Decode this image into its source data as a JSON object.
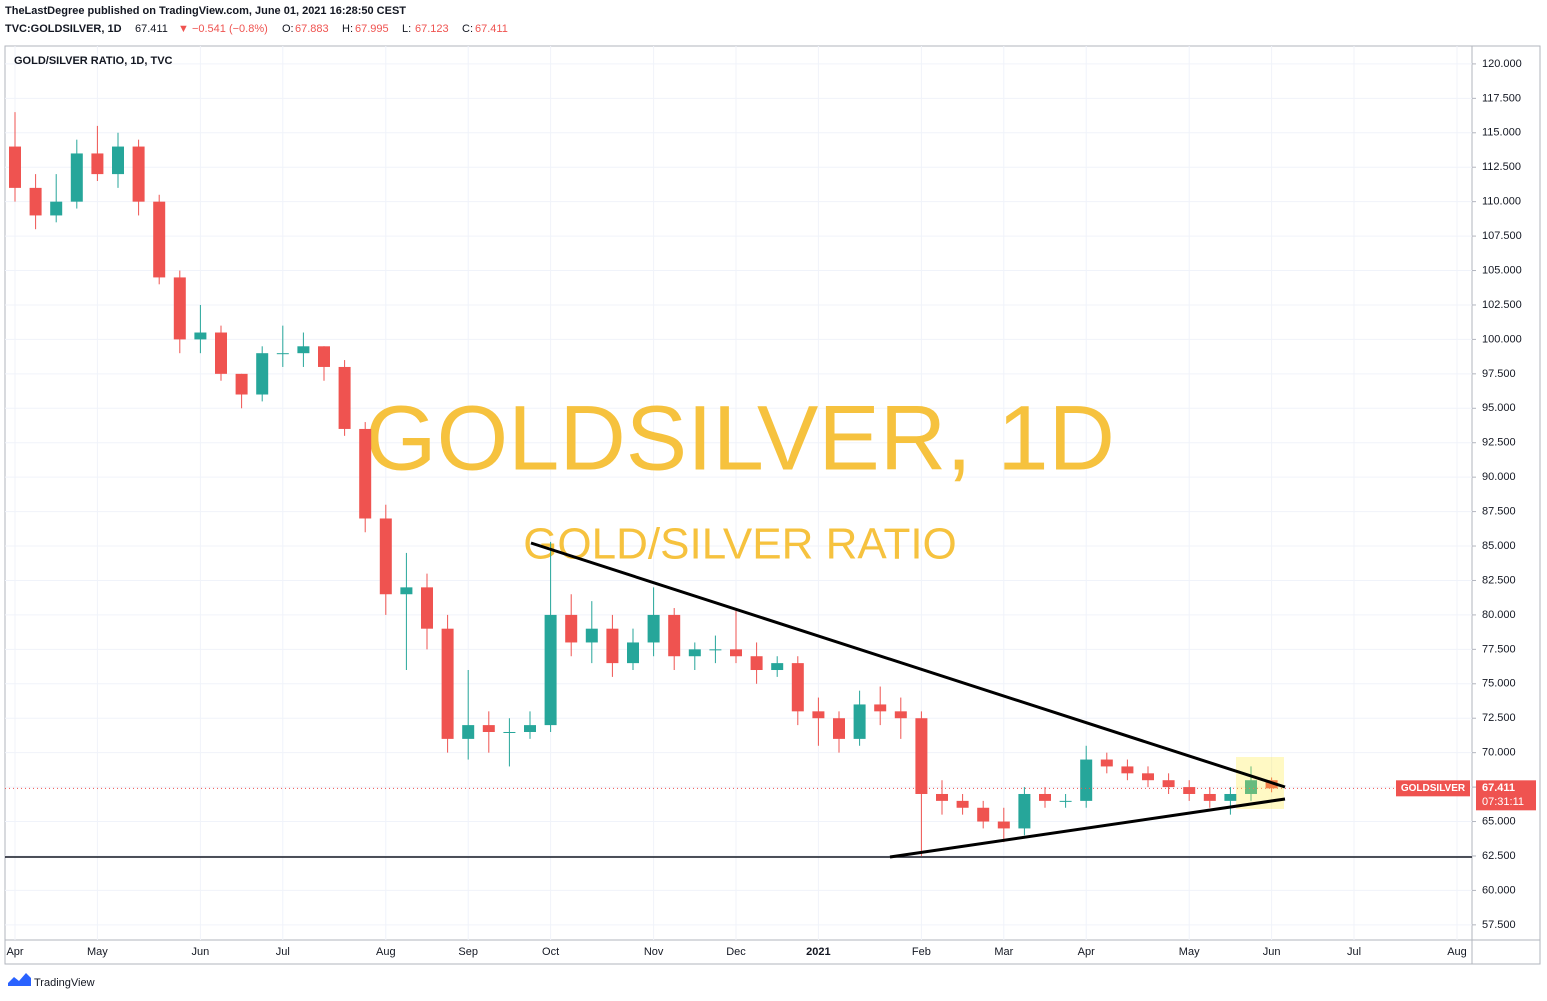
{
  "header": {
    "publisher": "TheLastDegree published on TradingView.com, June 01, 2021 16:28:50 CEST",
    "symbol": "TVC:GOLDSILVER, 1D",
    "price": "67.411",
    "change": "▼ −0.541 (−0.8%)",
    "quote": [
      {
        "label": "O:",
        "value": "67.883"
      },
      {
        "label": "H:",
        "value": "67.995"
      },
      {
        "label": "L:",
        "value": "67.123"
      },
      {
        "label": "C:",
        "value": "67.411"
      }
    ]
  },
  "chart_data": {
    "type": "candlestick",
    "title": "GOLD/SILVER RATIO, 1D, TVC",
    "watermark": "GOLDSILVER, 1D",
    "watermark_subtitle": "GOLD/SILVER RATIO",
    "up_color": "#26a69a",
    "down_color": "#ef5350",
    "categories": [
      "Apr",
      null,
      null,
      null,
      "May",
      null,
      null,
      null,
      null,
      "Jun",
      null,
      null,
      null,
      "Jul",
      null,
      null,
      null,
      null,
      "Aug",
      null,
      null,
      null,
      "Sep",
      null,
      null,
      null,
      "Oct",
      null,
      null,
      null,
      null,
      "Nov",
      null,
      null,
      null,
      "Dec",
      null,
      null,
      null,
      "2021",
      null,
      null,
      null,
      null,
      "Feb",
      null,
      null,
      null,
      "Mar",
      null,
      null,
      null,
      "Apr",
      null,
      null,
      null,
      null,
      "May",
      null,
      null,
      null,
      "Jun",
      null,
      null,
      null,
      "Jul",
      null,
      null,
      null,
      null,
      "Aug"
    ],
    "open": [
      114,
      111,
      109,
      110,
      113.5,
      112,
      114,
      110,
      104.5,
      100,
      100.5,
      97.5,
      96,
      99,
      99,
      99.5,
      98,
      93.5,
      87,
      81.5,
      82,
      79,
      71,
      72,
      71.5,
      71.5,
      72,
      80,
      78,
      79,
      76.5,
      78,
      80,
      77,
      77.5,
      77.5,
      77,
      76,
      76.5,
      73,
      72.5,
      71,
      73.5,
      73,
      72.5,
      67,
      66.5,
      66,
      65,
      64.5,
      67,
      66.5,
      66.5,
      69.5,
      69,
      68.5,
      68,
      67.5,
      67,
      66.5,
      67,
      68,
      null,
      null,
      null,
      null,
      null,
      null,
      null,
      null,
      null
    ],
    "high": [
      116.5,
      112,
      112,
      114.5,
      115.5,
      115,
      114.5,
      110.5,
      105,
      102.5,
      101,
      97.5,
      99.5,
      101,
      100.5,
      99.5,
      98.5,
      94,
      88,
      84.5,
      83,
      80,
      76,
      73,
      72.5,
      73,
      85.3,
      81.5,
      81,
      80,
      79,
      82,
      80.5,
      78,
      78.5,
      80.5,
      78,
      77,
      77,
      74,
      73,
      74.5,
      74.8,
      74,
      73,
      68,
      67,
      66.5,
      66,
      67.5,
      67.5,
      67,
      70.5,
      70,
      69.5,
      69,
      68.5,
      68,
      67.5,
      67.5,
      69,
      68.2,
      null,
      null,
      null,
      null,
      null,
      null,
      null,
      null,
      null
    ],
    "low": [
      110,
      108,
      108.5,
      109.5,
      111.5,
      111,
      109,
      104,
      99,
      99,
      97,
      95,
      95.5,
      98,
      98,
      97,
      93,
      86,
      80,
      76,
      77.5,
      70,
      69.5,
      70,
      69,
      71,
      71.5,
      77,
      76.5,
      75.5,
      76,
      77,
      76,
      76,
      76.5,
      76.5,
      75,
      75.5,
      72,
      70.5,
      70,
      70.5,
      72,
      71,
      62.5,
      65.5,
      65.5,
      64.5,
      63.5,
      64,
      66,
      66,
      66,
      68.5,
      68,
      67.5,
      67,
      66.5,
      66,
      65.5,
      66.5,
      67.123,
      null,
      null,
      null,
      null,
      null,
      null,
      null,
      null,
      null
    ],
    "close": [
      111,
      109,
      110,
      113.5,
      112,
      114,
      110,
      104.5,
      100,
      100.5,
      97.5,
      96,
      99,
      99,
      99.5,
      98,
      93.5,
      87,
      81.5,
      82,
      79,
      71,
      72,
      71.5,
      71.5,
      72,
      80,
      78,
      79,
      76.5,
      78,
      80,
      77,
      77.5,
      77.5,
      77,
      76,
      76.5,
      73,
      72.5,
      71,
      73.5,
      73,
      72.5,
      67,
      66.5,
      66,
      65,
      64.5,
      67,
      66.5,
      66.5,
      69.5,
      69,
      68.5,
      68,
      67.5,
      67,
      66.5,
      67,
      68,
      67.411,
      null,
      null,
      null,
      null,
      null,
      null,
      null,
      null,
      null
    ],
    "ylim": [
      56.4,
      121.3
    ],
    "yticks": [
      {
        "value": 57.5,
        "label": "57.500"
      },
      {
        "value": 60,
        "label": "60.000"
      },
      {
        "value": 62.5,
        "label": "62.500"
      },
      {
        "value": 65,
        "label": "65.000"
      },
      {
        "value": 67.5,
        "label": "67.500"
      },
      {
        "value": 70,
        "label": "70.000"
      },
      {
        "value": 72.5,
        "label": "72.500"
      },
      {
        "value": 75,
        "label": "75.000"
      },
      {
        "value": 77.5,
        "label": "77.500"
      },
      {
        "value": 80,
        "label": "80.000"
      },
      {
        "value": 82.5,
        "label": "82.500"
      },
      {
        "value": 85,
        "label": "85.000"
      },
      {
        "value": 87.5,
        "label": "87.500"
      },
      {
        "value": 90,
        "label": "90.000"
      },
      {
        "value": 92.5,
        "label": "92.500"
      },
      {
        "value": 95,
        "label": "95.000"
      },
      {
        "value": 97.5,
        "label": "97.500"
      },
      {
        "value": 100,
        "label": "100.000"
      },
      {
        "value": 102.5,
        "label": "102.500"
      },
      {
        "value": 105,
        "label": "105.000"
      },
      {
        "value": 107.5,
        "label": "107.500"
      },
      {
        "value": 110,
        "label": "110.000"
      },
      {
        "value": 112.5,
        "label": "112.500"
      },
      {
        "value": 115,
        "label": "115.000"
      },
      {
        "value": 117.5,
        "label": "117.500"
      },
      {
        "value": 120,
        "label": "120.000"
      }
    ],
    "grid": true,
    "last_price": 67.411,
    "symbol_tag": "GOLDSILVER",
    "countdown": "07:31:11"
  },
  "footer": {
    "brand": "TradingView"
  }
}
